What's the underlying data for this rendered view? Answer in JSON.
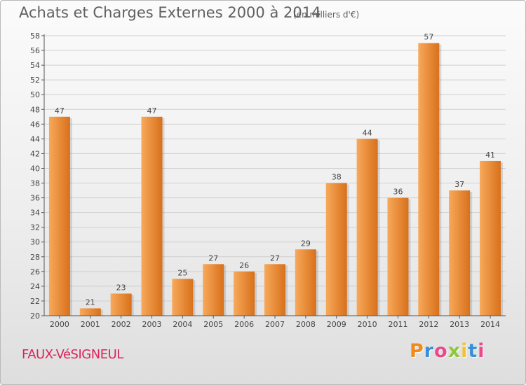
{
  "header": {
    "title": "Achats et Charges Externes 2000 à 2014",
    "subtitle": "(en milliers d'€)"
  },
  "footer": {
    "location": "FAUX-VéSIGNEUL",
    "logo_text": "Proxiti",
    "logo_colors": [
      "#f08a1c",
      "#3a8fd6",
      "#e94b8a",
      "#8dc63f",
      "#f2c230",
      "#3a8fd6",
      "#e94b8a"
    ]
  },
  "colors": {
    "bar_light": "#f7a95a",
    "bar_dark": "#d8701b",
    "axis": "#555555",
    "grid": "#d0d0d0",
    "text": "#444444"
  },
  "chart_data": {
    "type": "bar",
    "title": "Achats et Charges Externes 2000 à 2014",
    "subtitle": "(en milliers d'€)",
    "categories": [
      "2000",
      "2001",
      "2002",
      "2003",
      "2004",
      "2005",
      "2006",
      "2007",
      "2008",
      "2009",
      "2010",
      "2011",
      "2012",
      "2013",
      "2014"
    ],
    "values": [
      47,
      21,
      23,
      47,
      25,
      27,
      26,
      27,
      29,
      38,
      44,
      36,
      57,
      37,
      41
    ],
    "ylim": [
      20,
      58
    ],
    "ytick_step": 2,
    "grid": true,
    "data_labels": true
  }
}
